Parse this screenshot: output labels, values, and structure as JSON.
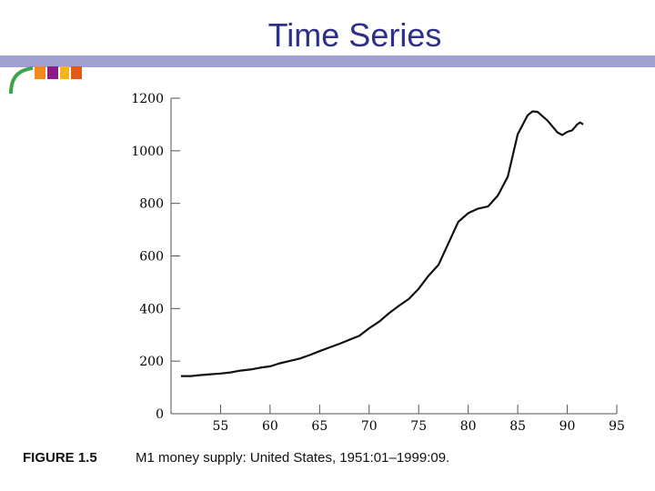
{
  "slide": {
    "title": "Time Series"
  },
  "caption": {
    "label": "FIGURE 1.5",
    "text": "M1 money supply: United States, 1951:01–1999:09."
  },
  "colors": {
    "title": "#2e2f86",
    "bar": "#a1a1d1",
    "line": "#111111"
  },
  "chart_data": {
    "type": "line",
    "title": "",
    "xlabel": "",
    "ylabel": "",
    "xlim": [
      50,
      95
    ],
    "ylim": [
      0,
      1200
    ],
    "xticks": [
      55,
      60,
      65,
      70,
      75,
      80,
      85,
      90,
      95
    ],
    "yticks": [
      0,
      200,
      400,
      600,
      800,
      1000,
      1200
    ],
    "grid": false,
    "series": [
      {
        "x": [
          51.0,
          52.0,
          53.0,
          54.0,
          55.0,
          56.0,
          57.0,
          58.0,
          59.0,
          60.0,
          61.0,
          62.0,
          63.0,
          64.0,
          65.0,
          66.0,
          67.0,
          68.0,
          69.0,
          70.0,
          71.0,
          72.0,
          73.0,
          74.0,
          75.0,
          76.0,
          77.0,
          78.0,
          79.0,
          80.0,
          81.0,
          82.0,
          83.0,
          84.0,
          85.0,
          86.0,
          86.5,
          87.0,
          88.0,
          89.0,
          89.5,
          90.0,
          90.5,
          91.0,
          91.3,
          91.6
        ],
        "values": [
          143,
          143,
          147,
          150,
          153,
          157,
          164,
          168,
          175,
          180,
          192,
          201,
          210,
          223,
          238,
          252,
          266,
          281,
          296,
          325,
          350,
          382,
          410,
          436,
          475,
          525,
          566,
          648,
          730,
          763,
          780,
          788,
          830,
          902,
          1063,
          1135,
          1150,
          1148,
          1115,
          1070,
          1060,
          1072,
          1078,
          1100,
          1108,
          1100
        ]
      }
    ]
  }
}
